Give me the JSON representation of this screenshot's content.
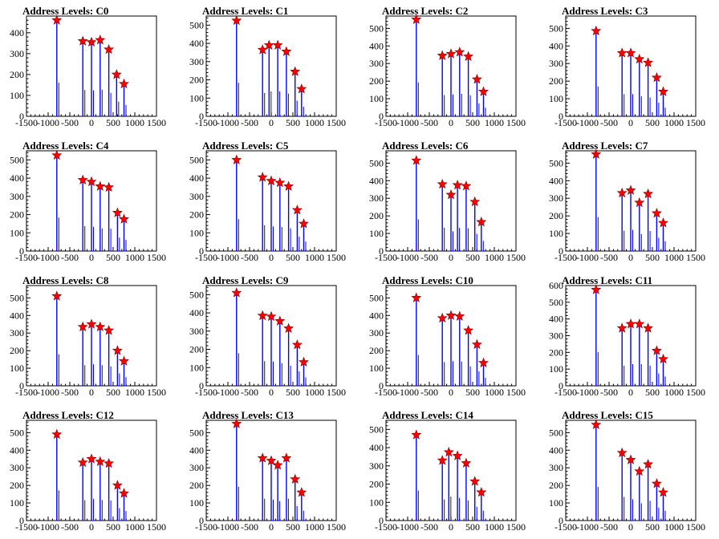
{
  "chart_data": [
    {
      "type": "bar",
      "title": "Address Levels: C0",
      "xlim": [
        -1500,
        1500
      ],
      "ylim": [
        0,
        480
      ],
      "yticks": [
        0,
        100,
        200,
        300,
        400
      ],
      "xticks": [
        -1500,
        -1000,
        -500,
        0,
        500,
        1000,
        1500
      ],
      "xtick_labels": [
        "-1500",
        "-1000",
        "-500",
        "0",
        "500",
        "1000",
        "1500"
      ],
      "peaks": [
        {
          "x": -800,
          "y": 460
        },
        {
          "x": -200,
          "y": 360
        },
        {
          "x": 0,
          "y": 355
        },
        {
          "x": 200,
          "y": 365
        },
        {
          "x": 400,
          "y": 320
        },
        {
          "x": 580,
          "y": 200
        },
        {
          "x": 750,
          "y": 155
        }
      ]
    },
    {
      "type": "bar",
      "title": "Address Levels: C1",
      "xlim": [
        -1500,
        1500
      ],
      "ylim": [
        0,
        550
      ],
      "yticks": [
        0,
        100,
        200,
        300,
        400,
        500
      ],
      "xticks": [
        -1500,
        -1000,
        -500,
        0,
        500,
        1000,
        1500
      ],
      "xtick_labels": [
        "-1500",
        "-1000",
        "-500",
        "0",
        "500",
        "1000",
        "1500"
      ],
      "peaks": [
        {
          "x": -800,
          "y": 525
        },
        {
          "x": -200,
          "y": 365
        },
        {
          "x": -50,
          "y": 390
        },
        {
          "x": 150,
          "y": 390
        },
        {
          "x": 350,
          "y": 355
        },
        {
          "x": 550,
          "y": 245
        },
        {
          "x": 700,
          "y": 150
        }
      ]
    },
    {
      "type": "bar",
      "title": "Address Levels: C2",
      "xlim": [
        -1500,
        1500
      ],
      "ylim": [
        0,
        570
      ],
      "yticks": [
        0,
        100,
        200,
        300,
        400,
        500
      ],
      "xticks": [
        -1500,
        -1000,
        -500,
        0,
        500,
        1000,
        1500
      ],
      "xtick_labels": [
        "-1500",
        "-1000",
        "-500",
        "0",
        "500",
        "1000",
        "1500"
      ],
      "peaks": [
        {
          "x": -800,
          "y": 550
        },
        {
          "x": -200,
          "y": 345
        },
        {
          "x": 0,
          "y": 355
        },
        {
          "x": 200,
          "y": 365
        },
        {
          "x": 400,
          "y": 340
        },
        {
          "x": 600,
          "y": 210
        },
        {
          "x": 750,
          "y": 140
        }
      ]
    },
    {
      "type": "bar",
      "title": "Address Levels: C3",
      "xlim": [
        -1500,
        1500
      ],
      "ylim": [
        0,
        570
      ],
      "yticks": [
        0,
        100,
        200,
        300,
        400,
        500
      ],
      "xticks": [
        -1500,
        -1000,
        -500,
        0,
        500,
        1000,
        1500
      ],
      "xtick_labels": [
        "-1500",
        "-1000",
        "-500",
        "0",
        "500",
        "1000",
        "1500"
      ],
      "peaks": [
        {
          "x": -800,
          "y": 485
        },
        {
          "x": -200,
          "y": 360
        },
        {
          "x": 0,
          "y": 360
        },
        {
          "x": 200,
          "y": 325
        },
        {
          "x": 400,
          "y": 305
        },
        {
          "x": 600,
          "y": 220
        },
        {
          "x": 750,
          "y": 140
        }
      ]
    },
    {
      "type": "bar",
      "title": "Address Levels: C4",
      "xlim": [
        -1500,
        1500
      ],
      "ylim": [
        0,
        550
      ],
      "yticks": [
        0,
        100,
        200,
        300,
        400,
        500
      ],
      "xticks": [
        -1500,
        -1000,
        -500,
        0,
        500,
        1000,
        1500
      ],
      "xtick_labels": [
        "-1500",
        "-1000",
        "-500",
        "0",
        "500",
        "1000",
        "1500"
      ],
      "peaks": [
        {
          "x": -800,
          "y": 525
        },
        {
          "x": -200,
          "y": 390
        },
        {
          "x": 0,
          "y": 380
        },
        {
          "x": 200,
          "y": 355
        },
        {
          "x": 400,
          "y": 350
        },
        {
          "x": 600,
          "y": 210
        },
        {
          "x": 750,
          "y": 175
        }
      ]
    },
    {
      "type": "bar",
      "title": "Address Levels: C5",
      "xlim": [
        -1500,
        1500
      ],
      "ylim": [
        0,
        550
      ],
      "yticks": [
        0,
        100,
        200,
        300,
        400,
        500
      ],
      "xticks": [
        -1500,
        -1000,
        -500,
        0,
        500,
        1000,
        1500
      ],
      "xtick_labels": [
        "-1500",
        "-1000",
        "-500",
        "0",
        "500",
        "1000",
        "1500"
      ],
      "peaks": [
        {
          "x": -800,
          "y": 500
        },
        {
          "x": -200,
          "y": 405
        },
        {
          "x": 0,
          "y": 385
        },
        {
          "x": 200,
          "y": 375
        },
        {
          "x": 400,
          "y": 355
        },
        {
          "x": 600,
          "y": 225
        },
        {
          "x": 750,
          "y": 150
        }
      ]
    },
    {
      "type": "bar",
      "title": "Address Levels: C6",
      "xlim": [
        -1500,
        1500
      ],
      "ylim": [
        0,
        570
      ],
      "yticks": [
        0,
        100,
        200,
        300,
        400,
        500
      ],
      "xticks": [
        -1500,
        -1000,
        -500,
        0,
        500,
        1000,
        1500
      ],
      "xtick_labels": [
        "-1500",
        "-1000",
        "-500",
        "0",
        "500",
        "1000",
        "1500"
      ],
      "peaks": [
        {
          "x": -800,
          "y": 515
        },
        {
          "x": -200,
          "y": 380
        },
        {
          "x": 0,
          "y": 320
        },
        {
          "x": 150,
          "y": 375
        },
        {
          "x": 350,
          "y": 370
        },
        {
          "x": 550,
          "y": 280
        },
        {
          "x": 700,
          "y": 165
        }
      ]
    },
    {
      "type": "bar",
      "title": "Address Levels: C7",
      "xlim": [
        -1500,
        1500
      ],
      "ylim": [
        0,
        570
      ],
      "yticks": [
        0,
        100,
        200,
        300,
        400,
        500
      ],
      "xticks": [
        -1500,
        -1000,
        -500,
        0,
        500,
        1000,
        1500
      ],
      "xtick_labels": [
        "-1500",
        "-1000",
        "-500",
        "0",
        "500",
        "1000",
        "1500"
      ],
      "peaks": [
        {
          "x": -800,
          "y": 550
        },
        {
          "x": -200,
          "y": 330
        },
        {
          "x": 0,
          "y": 345
        },
        {
          "x": 200,
          "y": 275
        },
        {
          "x": 400,
          "y": 325
        },
        {
          "x": 600,
          "y": 215
        },
        {
          "x": 750,
          "y": 160
        }
      ]
    },
    {
      "type": "bar",
      "title": "Address Levels: C8",
      "xlim": [
        -1500,
        1500
      ],
      "ylim": [
        0,
        570
      ],
      "yticks": [
        0,
        100,
        200,
        300,
        400,
        500
      ],
      "xticks": [
        -1500,
        -1000,
        -500,
        0,
        500,
        1000,
        1500
      ],
      "xtick_labels": [
        "-1500",
        "-1000",
        "-500",
        "0",
        "500",
        "1000",
        "1500"
      ],
      "peaks": [
        {
          "x": -800,
          "y": 510
        },
        {
          "x": -200,
          "y": 335
        },
        {
          "x": 0,
          "y": 350
        },
        {
          "x": 200,
          "y": 335
        },
        {
          "x": 400,
          "y": 315
        },
        {
          "x": 600,
          "y": 200
        },
        {
          "x": 750,
          "y": 140
        }
      ]
    },
    {
      "type": "bar",
      "title": "Address Levels: C9",
      "xlim": [
        -1500,
        1500
      ],
      "ylim": [
        0,
        550
      ],
      "yticks": [
        0,
        100,
        200,
        300,
        400,
        500
      ],
      "xticks": [
        -1500,
        -1000,
        -500,
        0,
        500,
        1000,
        1500
      ],
      "xtick_labels": [
        "-1500",
        "-1000",
        "-500",
        "0",
        "500",
        "1000",
        "1500"
      ],
      "peaks": [
        {
          "x": -800,
          "y": 510
        },
        {
          "x": -200,
          "y": 385
        },
        {
          "x": 0,
          "y": 380
        },
        {
          "x": 200,
          "y": 355
        },
        {
          "x": 400,
          "y": 315
        },
        {
          "x": 600,
          "y": 225
        },
        {
          "x": 750,
          "y": 130
        }
      ]
    },
    {
      "type": "bar",
      "title": "Address Levels: C10",
      "xlim": [
        -1500,
        1500
      ],
      "ylim": [
        0,
        570
      ],
      "yticks": [
        0,
        100,
        200,
        300,
        400,
        500
      ],
      "xticks": [
        -1500,
        -1000,
        -500,
        0,
        500,
        1000,
        1500
      ],
      "xtick_labels": [
        "-1500",
        "-1000",
        "-500",
        "0",
        "500",
        "1000",
        "1500"
      ],
      "peaks": [
        {
          "x": -800,
          "y": 500
        },
        {
          "x": -200,
          "y": 385
        },
        {
          "x": 0,
          "y": 400
        },
        {
          "x": 200,
          "y": 395
        },
        {
          "x": 400,
          "y": 315
        },
        {
          "x": 600,
          "y": 235
        },
        {
          "x": 750,
          "y": 130
        }
      ]
    },
    {
      "type": "bar",
      "title": "Address Levels: C11",
      "xlim": [
        -1500,
        1500
      ],
      "ylim": [
        0,
        600
      ],
      "yticks": [
        0,
        100,
        200,
        300,
        400,
        500,
        600
      ],
      "xticks": [
        -1500,
        -1000,
        -500,
        0,
        500,
        1000,
        1500
      ],
      "xtick_labels": [
        "-1500",
        "-1000",
        "-500",
        "0",
        "500",
        "1000",
        "1500"
      ],
      "peaks": [
        {
          "x": -800,
          "y": 575
        },
        {
          "x": -200,
          "y": 345
        },
        {
          "x": 0,
          "y": 370
        },
        {
          "x": 200,
          "y": 370
        },
        {
          "x": 400,
          "y": 345
        },
        {
          "x": 600,
          "y": 210
        },
        {
          "x": 750,
          "y": 160
        }
      ]
    },
    {
      "type": "bar",
      "title": "Address Levels: C12",
      "xlim": [
        -1500,
        1500
      ],
      "ylim": [
        0,
        570
      ],
      "yticks": [
        0,
        100,
        200,
        300,
        400,
        500
      ],
      "xticks": [
        -1500,
        -1000,
        -500,
        0,
        500,
        1000,
        1500
      ],
      "xtick_labels": [
        "-1500",
        "-1000",
        "-500",
        "0",
        "500",
        "1000",
        "1500"
      ],
      "peaks": [
        {
          "x": -800,
          "y": 490
        },
        {
          "x": -200,
          "y": 330
        },
        {
          "x": 0,
          "y": 350
        },
        {
          "x": 200,
          "y": 335
        },
        {
          "x": 400,
          "y": 325
        },
        {
          "x": 600,
          "y": 200
        },
        {
          "x": 750,
          "y": 155
        }
      ]
    },
    {
      "type": "bar",
      "title": "Address Levels: C13",
      "xlim": [
        -1500,
        1500
      ],
      "ylim": [
        0,
        570
      ],
      "yticks": [
        0,
        100,
        200,
        300,
        400,
        500
      ],
      "xticks": [
        -1500,
        -1000,
        -500,
        0,
        500,
        1000,
        1500
      ],
      "xtick_labels": [
        "-1500",
        "-1000",
        "-500",
        "0",
        "500",
        "1000",
        "1500"
      ],
      "peaks": [
        {
          "x": -800,
          "y": 550
        },
        {
          "x": -200,
          "y": 355
        },
        {
          "x": 0,
          "y": 340
        },
        {
          "x": 150,
          "y": 315
        },
        {
          "x": 350,
          "y": 355
        },
        {
          "x": 550,
          "y": 235
        },
        {
          "x": 700,
          "y": 160
        }
      ]
    },
    {
      "type": "bar",
      "title": "Address Levels: C14",
      "xlim": [
        -1500,
        1500
      ],
      "ylim": [
        0,
        550
      ],
      "yticks": [
        0,
        100,
        200,
        300,
        400,
        500
      ],
      "xticks": [
        -1500,
        -1000,
        -500,
        0,
        500,
        1000,
        1500
      ],
      "xtick_labels": [
        "-1500",
        "-1000",
        "-500",
        "0",
        "500",
        "1000",
        "1500"
      ],
      "peaks": [
        {
          "x": -800,
          "y": 470
        },
        {
          "x": -200,
          "y": 330
        },
        {
          "x": -50,
          "y": 375
        },
        {
          "x": 150,
          "y": 355
        },
        {
          "x": 350,
          "y": 315
        },
        {
          "x": 550,
          "y": 215
        },
        {
          "x": 700,
          "y": 155
        }
      ]
    },
    {
      "type": "bar",
      "title": "Address Levels: C15",
      "xlim": [
        -1500,
        1500
      ],
      "ylim": [
        0,
        570
      ],
      "yticks": [
        0,
        100,
        200,
        300,
        400,
        500
      ],
      "xticks": [
        -1500,
        -1000,
        -500,
        0,
        500,
        1000,
        1500
      ],
      "xtick_labels": [
        "-1500",
        "-1000",
        "-500",
        "0",
        "500",
        "1000",
        "1500"
      ],
      "peaks": [
        {
          "x": -800,
          "y": 545
        },
        {
          "x": -200,
          "y": 385
        },
        {
          "x": 0,
          "y": 345
        },
        {
          "x": 200,
          "y": 280
        },
        {
          "x": 400,
          "y": 320
        },
        {
          "x": 600,
          "y": 210
        },
        {
          "x": 750,
          "y": 160
        }
      ]
    }
  ],
  "colors": {
    "histogram": "#0000ff",
    "marker": "#ff0000",
    "marker_edge": "#8b0000",
    "frame": "#000000"
  }
}
